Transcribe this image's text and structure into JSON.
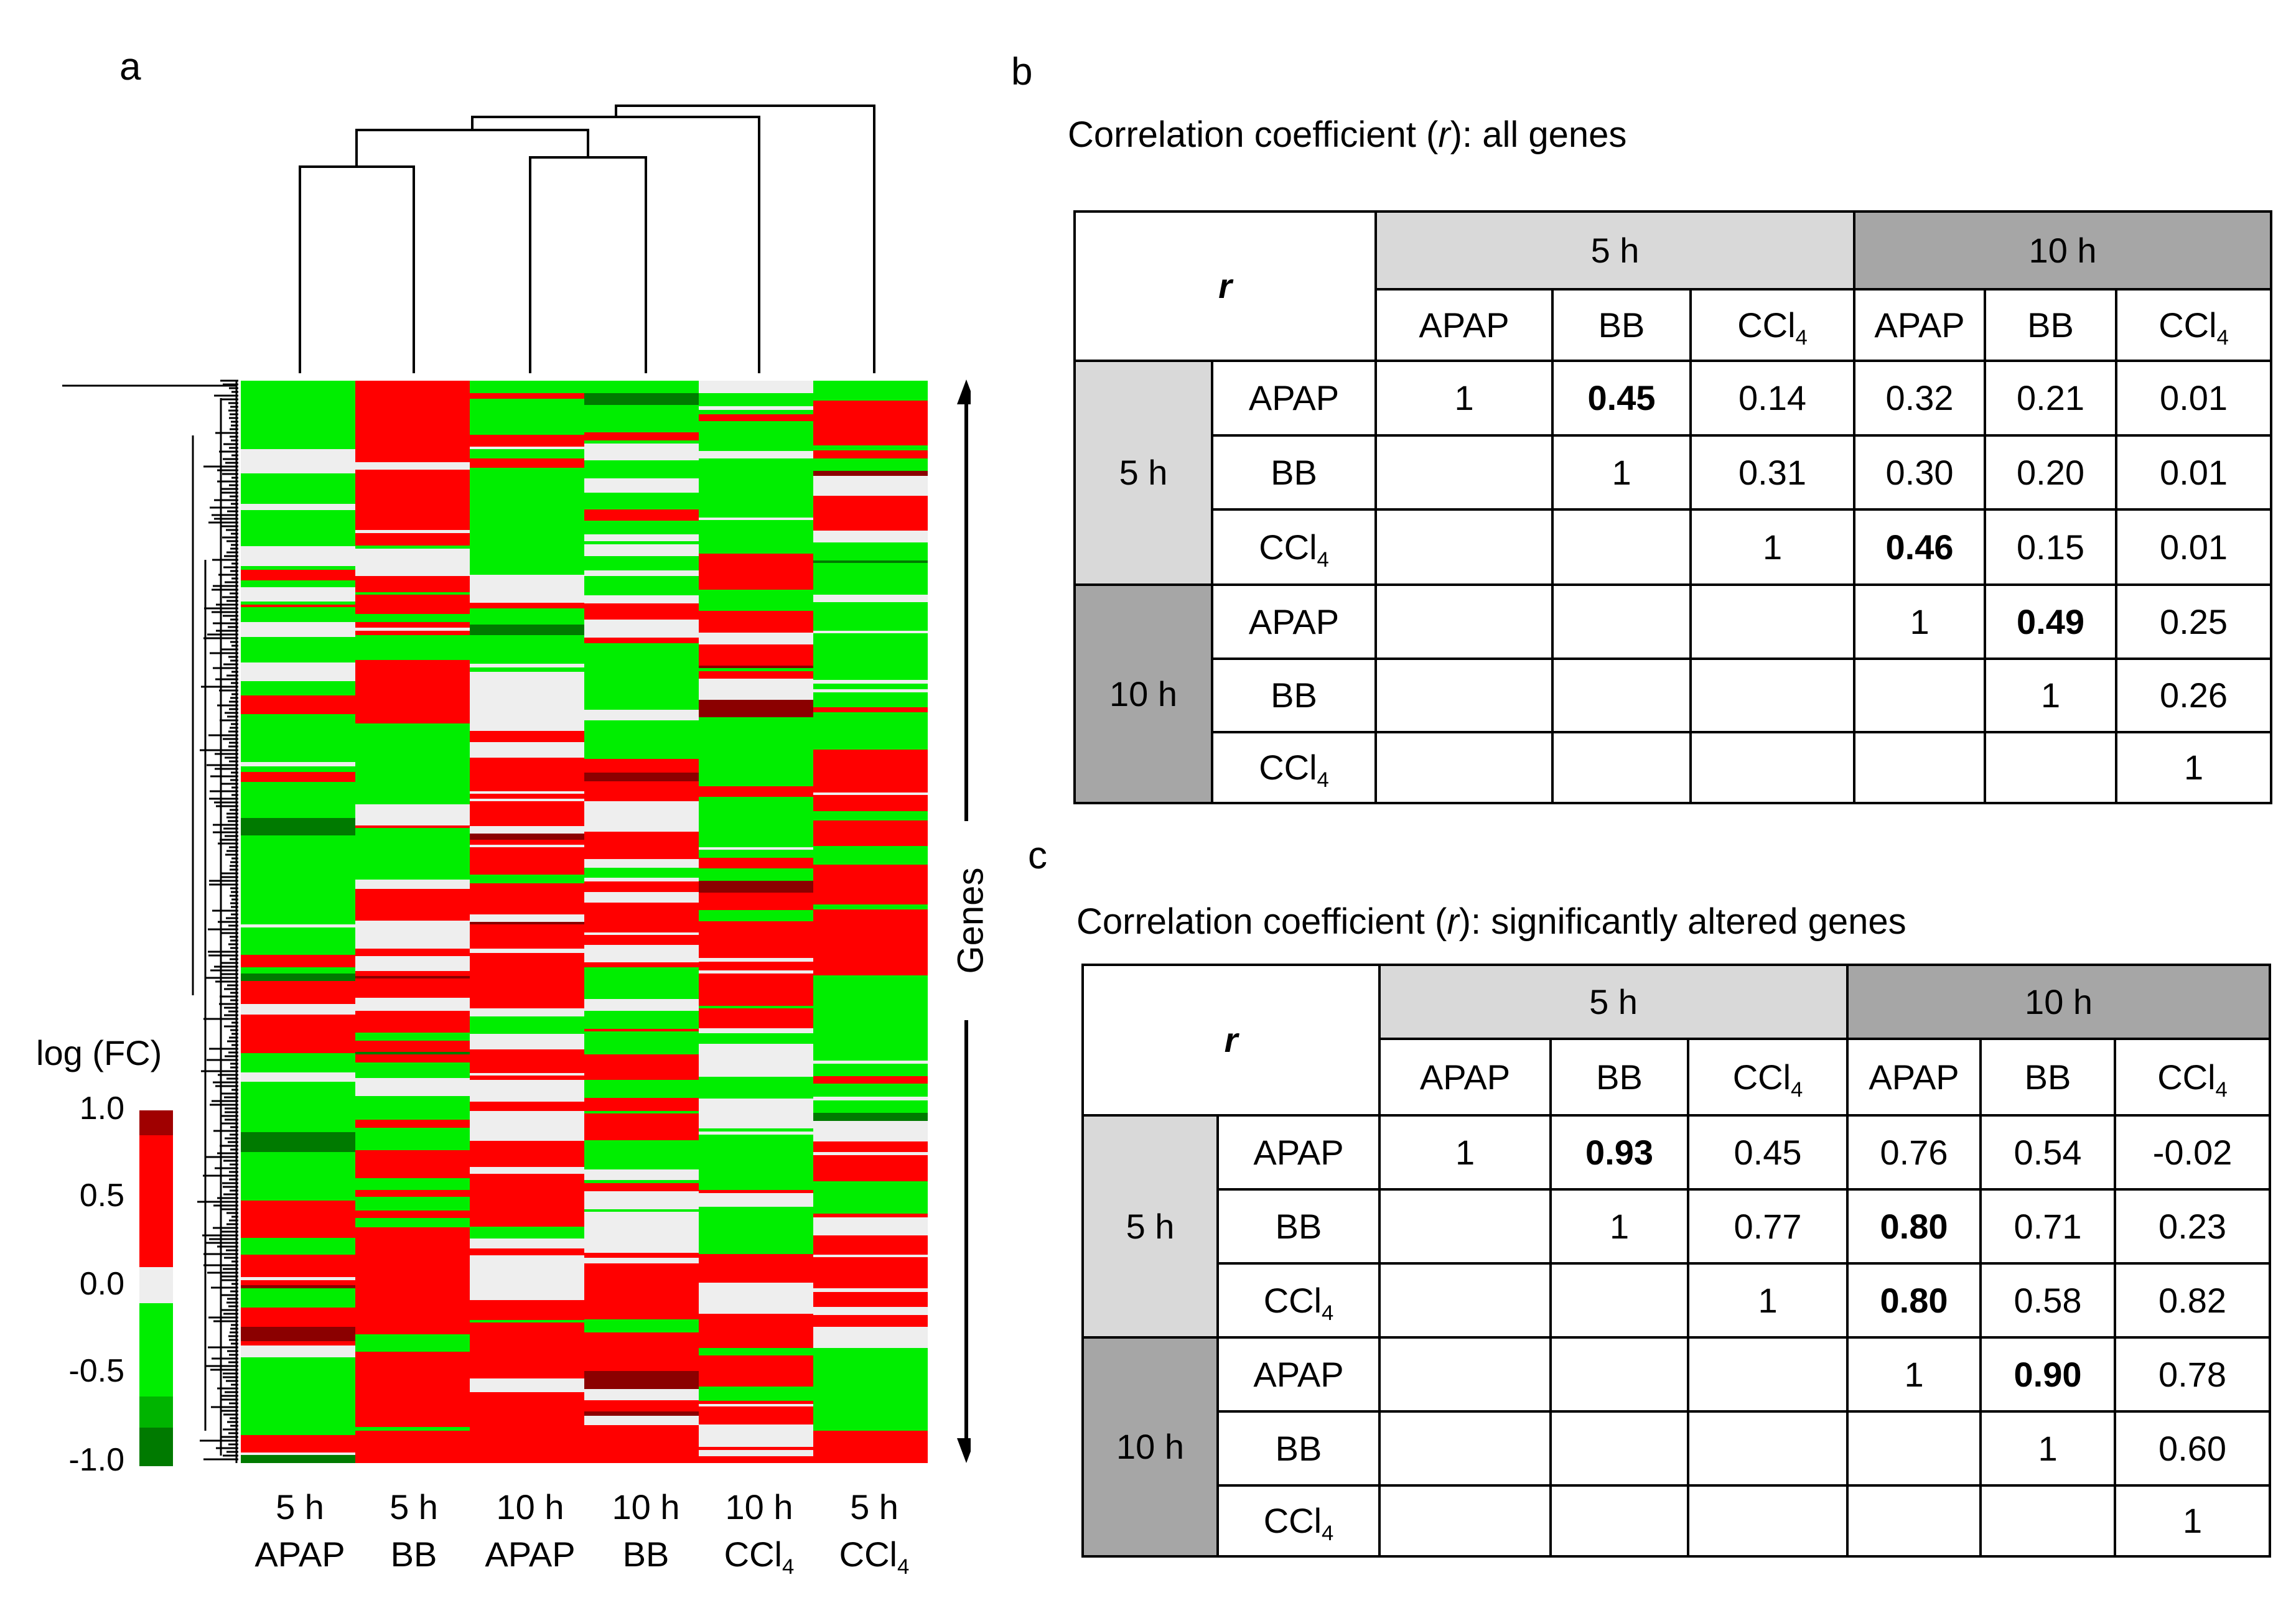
{
  "panel_a": {
    "label": "a",
    "legend_title": "log (FC)",
    "legend_ticks": [
      "1.0",
      "0.5",
      "0.0",
      "-0.5",
      "-1.0"
    ],
    "genes_label": "Genes",
    "columns": [
      {
        "line1": "5 h",
        "line2": "APAP",
        "sub": ""
      },
      {
        "line1": "5 h",
        "line2": "BB",
        "sub": ""
      },
      {
        "line1": "10 h",
        "line2": "APAP",
        "sub": ""
      },
      {
        "line1": "10 h",
        "line2": "BB",
        "sub": ""
      },
      {
        "line1": "10 h",
        "line2": "CCl",
        "sub": "4"
      },
      {
        "line1": "5 h",
        "line2": "CCl",
        "sub": "4"
      }
    ],
    "colors": {
      "up_strong": "#8b0000",
      "up": "#ff0000",
      "neutral": "#eeeeee",
      "down": "#00ee00",
      "down_strong": "#007a00"
    }
  },
  "panel_b": {
    "label": "b",
    "title_pre": "Correlation coefficient (",
    "title_r": "r",
    "title_post": "): all genes",
    "corner": "r",
    "group_5h": "5 h",
    "group_10h": "10 h",
    "col_apap": "APAP",
    "col_bb": "BB",
    "col_ccl": "CCl",
    "col_ccl_sub": "4",
    "rows": [
      [
        "1",
        "0.45",
        "0.14",
        "0.32",
        "0.21",
        "0.01"
      ],
      [
        "",
        "1",
        "0.31",
        "0.30",
        "0.20",
        "0.01"
      ],
      [
        "",
        "",
        "1",
        "0.46",
        "0.15",
        "0.01"
      ],
      [
        "",
        "",
        "",
        "1",
        "0.49",
        "0.25"
      ],
      [
        "",
        "",
        "",
        "",
        "1",
        "0.26"
      ],
      [
        "",
        "",
        "",
        "",
        "",
        "1"
      ]
    ]
  },
  "panel_c": {
    "label": "c",
    "title_pre": "Correlation coefficient (",
    "title_r": "r",
    "title_post": "): significantly altered genes",
    "corner": "r",
    "group_5h": "5 h",
    "group_10h": "10 h",
    "col_apap": "APAP",
    "col_bb": "BB",
    "col_ccl": "CCl",
    "col_ccl_sub": "4",
    "rows": [
      [
        "1",
        "0.93",
        "0.45",
        "0.76",
        "0.54",
        "-0.02"
      ],
      [
        "",
        "1",
        "0.77",
        "0.80",
        "0.71",
        "0.23"
      ],
      [
        "",
        "",
        "1",
        "0.80",
        "0.58",
        "0.82"
      ],
      [
        "",
        "",
        "",
        "1",
        "0.90",
        "0.78"
      ],
      [
        "",
        "",
        "",
        "",
        "1",
        "0.60"
      ],
      [
        "",
        "",
        "",
        "",
        "",
        "1"
      ]
    ]
  }
}
